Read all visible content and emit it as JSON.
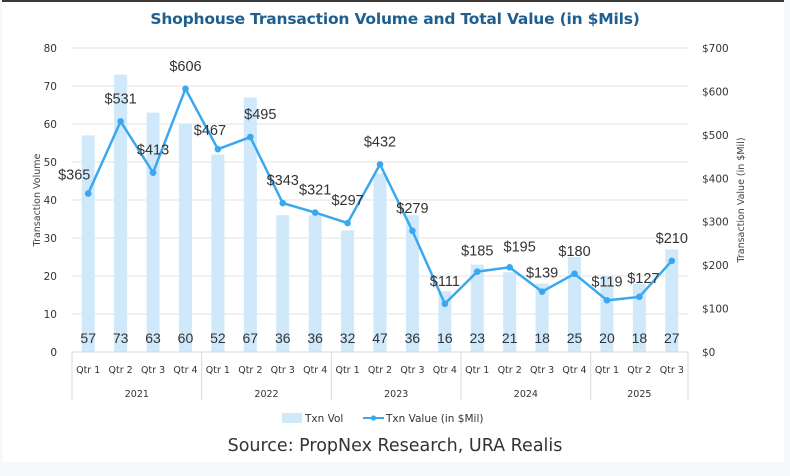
{
  "chart_data": {
    "type": "bar+line",
    "title": "Shophouse Transaction Volume and Total Value (in $Mils)",
    "categories": [
      "Qtr 1",
      "Qtr 2",
      "Qtr 3",
      "Qtr 4",
      "Qtr 1",
      "Qtr 2",
      "Qtr 3",
      "Qtr 4",
      "Qtr 1",
      "Qtr 2",
      "Qtr 3",
      "Qtr 4",
      "Qtr 1",
      "Qtr 2",
      "Qtr 3",
      "Qtr 4",
      "Qtr 1",
      "Qtr 2",
      "Qtr 3"
    ],
    "groups": [
      {
        "label": "2021",
        "count": 4
      },
      {
        "label": "2022",
        "count": 4
      },
      {
        "label": "2023",
        "count": 4
      },
      {
        "label": "2024",
        "count": 4
      },
      {
        "label": "2025",
        "count": 3
      }
    ],
    "series": [
      {
        "name": "Txn Vol",
        "type": "bar",
        "axis": "left",
        "color": "#cfe8fa",
        "values": [
          57,
          73,
          63,
          60,
          52,
          67,
          36,
          36,
          32,
          47,
          36,
          16,
          23,
          21,
          18,
          25,
          20,
          18,
          27
        ],
        "labels": [
          "57",
          "73",
          "63",
          "60",
          "52",
          "67",
          "36",
          "36",
          "32",
          "47",
          "36",
          "16",
          "23",
          "21",
          "18",
          "25",
          "20",
          "18",
          "27"
        ]
      },
      {
        "name": "Txn Value (in $Mil)",
        "type": "line",
        "axis": "right",
        "color": "#3aa8ef",
        "values": [
          365,
          531,
          413,
          606,
          467,
          495,
          343,
          321,
          297,
          432,
          279,
          111,
          185,
          195,
          139,
          180,
          119,
          127,
          210
        ],
        "labels": [
          "$365",
          "$531",
          "$413",
          "$606",
          "$467",
          "$495",
          "$343",
          "$321",
          "$297",
          "$432",
          "$279",
          "$111",
          "$185",
          "$195",
          "$139",
          "$180",
          "$119",
          "$127",
          "$210"
        ]
      }
    ],
    "ylabel": "Transaction Volume",
    "ylim": [
      0,
      80
    ],
    "yticks": [
      "0",
      "10",
      "20",
      "30",
      "40",
      "50",
      "60",
      "70",
      "80"
    ],
    "y2label": "Transaction Value (in $Mil)",
    "y2lim": [
      0,
      700
    ],
    "y2ticks": [
      "$0",
      "$100",
      "$200",
      "$300",
      "$400",
      "$500",
      "$600",
      "$700"
    ],
    "grid": true,
    "legend": "bottom",
    "source": "Source: PropNex Research, URA Realis",
    "colors": {
      "title": "#1f5f8f",
      "gridline": "#e3e3e3",
      "axis_line": "#d9d9d9"
    }
  }
}
